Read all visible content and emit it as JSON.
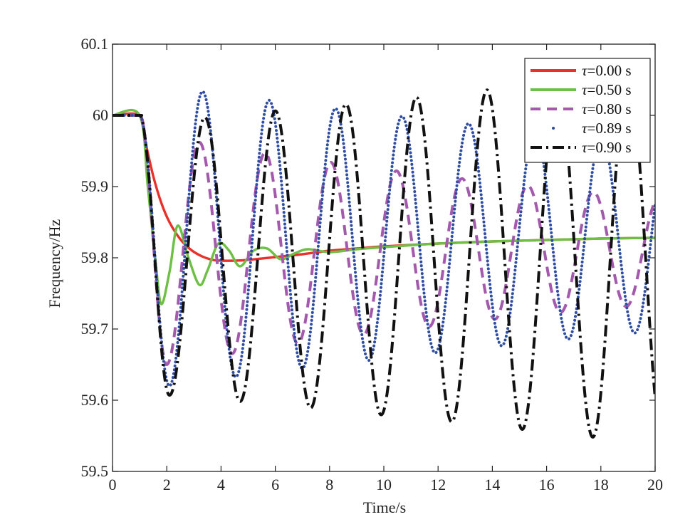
{
  "chart_data": {
    "type": "line",
    "title": "",
    "xlabel": "Time/s",
    "ylabel": "Frequency/Hz",
    "xlim": [
      0,
      20
    ],
    "ylim": [
      59.5,
      60.1
    ],
    "x_ticks": [
      0,
      2,
      4,
      6,
      8,
      10,
      12,
      14,
      16,
      18,
      20
    ],
    "x_tick_labels": [
      "0",
      "2",
      "4",
      "6",
      "8",
      "10",
      "12",
      "14",
      "16",
      "18",
      "20"
    ],
    "y_ticks": [
      59.5,
      59.6,
      59.7,
      59.8,
      59.9,
      60.0,
      60.1
    ],
    "y_tick_labels": [
      "59.5",
      "59.6",
      "59.7",
      "59.8",
      "59.9",
      "60",
      "60.1"
    ],
    "grid": false,
    "legend_position": "top-right",
    "series": [
      {
        "name": "τ=0.00 s",
        "symbol": "τ",
        "label_rest": "=0.00 s",
        "color": "#e8312a",
        "style": "solid",
        "x": [
          0,
          1,
          1.2,
          1.5,
          1.8,
          2.1,
          2.5,
          2.9,
          3.3,
          3.7,
          4.0,
          4.5,
          5,
          6,
          7,
          8,
          9,
          10,
          12,
          14,
          16,
          18,
          20
        ],
        "y": [
          60.0,
          60.0,
          59.965,
          59.915,
          59.877,
          59.85,
          59.826,
          59.811,
          59.802,
          59.797,
          59.796,
          59.796,
          59.797,
          59.801,
          59.805,
          59.81,
          59.813,
          59.816,
          59.82,
          59.823,
          59.825,
          59.827,
          59.828
        ]
      },
      {
        "name": "τ=0.50 s",
        "symbol": "τ",
        "label_rest": "=0.50 s",
        "color": "#6dbf45",
        "style": "solid",
        "x": [
          0,
          1,
          1.3,
          1.6,
          1.8,
          2.1,
          2.4,
          2.8,
          3.2,
          3.5,
          3.9,
          4.3,
          4.7,
          5.2,
          5.7,
          6.2,
          6.7,
          7.2,
          8.0,
          9,
          10,
          12,
          14,
          16,
          18,
          20
        ],
        "y": [
          60.0,
          60.0,
          59.9,
          59.79,
          59.735,
          59.78,
          59.845,
          59.8,
          59.762,
          59.782,
          59.82,
          59.81,
          59.788,
          59.81,
          59.813,
          59.798,
          59.806,
          59.812,
          59.808,
          59.812,
          59.815,
          59.82,
          59.823,
          59.825,
          59.827,
          59.828
        ]
      },
      {
        "name": "τ=0.80 s",
        "symbol": "τ",
        "label_rest": "=0.80 s",
        "color": "#a35aad",
        "style": "dashed",
        "center": 59.81,
        "amp_first": 0.16,
        "amp_last": 0.075,
        "period": 2.42,
        "first_trough_t": 2.0,
        "x": [
          0,
          1
        ],
        "y": [
          60.0,
          60.0
        ]
      },
      {
        "name": "τ=0.89 s",
        "symbol": "τ",
        "label_rest": "=0.89 s",
        "color": "#2f4ea3",
        "style": "dotted",
        "center": 59.83,
        "amp_first": 0.21,
        "amp_last": 0.133,
        "period": 2.45,
        "first_trough_t": 2.1,
        "x": [
          0,
          1
        ],
        "y": [
          60.0,
          60.0
        ]
      },
      {
        "name": "τ=0.90 s",
        "symbol": "τ",
        "label_rest": "=0.90 s",
        "color": "#111111",
        "style": "dashdot",
        "center": 59.8,
        "amp_first": 0.193,
        "amp_last": 0.262,
        "period": 2.6,
        "first_trough_t": 2.1,
        "x": [
          0,
          1
        ],
        "y": [
          60.0,
          60.0
        ]
      }
    ]
  }
}
